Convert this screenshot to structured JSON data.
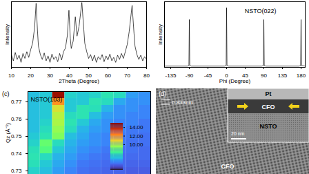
{
  "chart_data": [
    {
      "type": "line",
      "x_label": "2Theta (Degree)",
      "y_label": "Intensity",
      "color": "#000000",
      "x": [
        10,
        11,
        12,
        13,
        14,
        15,
        16,
        17,
        18,
        19,
        20,
        21,
        22,
        22.8,
        23.5,
        24,
        25,
        26,
        27,
        28,
        29,
        30,
        31,
        32,
        33,
        34,
        35,
        36,
        37,
        38,
        39,
        39.8,
        40.5,
        41,
        42,
        43.1,
        44,
        45,
        46.5,
        47.5,
        48,
        49,
        50,
        51,
        52,
        53,
        54,
        55,
        56,
        57,
        58,
        59,
        60,
        61,
        62,
        63,
        64,
        65,
        66,
        67,
        68,
        69,
        70,
        71,
        72.5,
        73.5,
        74,
        75,
        76,
        77,
        78,
        79,
        80
      ],
      "values": [
        60,
        25,
        80,
        30,
        55,
        20,
        70,
        35,
        90,
        40,
        120,
        300,
        2500,
        80000,
        1800,
        200,
        60,
        30,
        75,
        25,
        50,
        20,
        65,
        30,
        45,
        22,
        70,
        28,
        90,
        150,
        900,
        30000,
        600,
        140,
        400,
        12000,
        800,
        3000,
        90000,
        2000,
        300,
        90,
        35,
        60,
        25,
        55,
        20,
        45,
        30,
        60,
        22,
        50,
        28,
        65,
        25,
        40,
        20,
        55,
        30,
        70,
        35,
        90,
        250,
        1500,
        60000,
        1200,
        200,
        60,
        30,
        55,
        25,
        45,
        30
      ],
      "xlim": [
        10,
        80
      ],
      "xticks": [
        10,
        20,
        30,
        40,
        50,
        60,
        70,
        80
      ],
      "ylim": [
        10,
        100000
      ],
      "log": "y",
      "tick_labels": "x"
    },
    {
      "type": "line",
      "x_label": "Phi (Degree)",
      "y_label": "Intensity",
      "annotation": "NSTO(022)",
      "color": "#000000",
      "x": [
        -150,
        -95,
        -91,
        -90,
        -89,
        -85,
        -5,
        -1,
        0,
        1,
        5,
        85,
        89,
        90,
        91,
        95,
        175,
        179,
        180,
        181,
        190
      ],
      "values": [
        2,
        2,
        3,
        80,
        3,
        2,
        2,
        3,
        100,
        3,
        2,
        2,
        3,
        80,
        3,
        2,
        2,
        3,
        80,
        3,
        2
      ],
      "xlim": [
        -150,
        190
      ],
      "xticks": [
        -135,
        -90,
        -45,
        0,
        45,
        90,
        135,
        180
      ],
      "ylim": [
        0,
        110
      ],
      "tick_labels": "x"
    },
    {
      "type": "heatmap",
      "panel": "(c)",
      "annotation": "NSTO(103)",
      "y_label": "Qz (Å⁻¹)",
      "qx_edges": [
        0.22,
        0.227,
        0.234,
        0.241,
        0.248,
        0.255,
        0.262,
        0.269,
        0.276,
        0.283,
        0.29
      ],
      "qz_edges": [
        0.776,
        0.772,
        0.768,
        0.764,
        0.76,
        0.756,
        0.752,
        0.748,
        0.744,
        0.74,
        0.736,
        0.732,
        0.728
      ],
      "cells": [
        [
          6.8,
          7.0,
          14.5,
          7.2,
          7.0,
          7.2,
          7.6,
          7.4,
          6.2,
          6.0
        ],
        [
          6.8,
          7.0,
          12.0,
          7.0,
          7.0,
          7.6,
          7.4,
          6.4,
          6.0,
          6.0
        ],
        [
          6.8,
          7.0,
          10.5,
          7.0,
          7.6,
          7.5,
          6.6,
          6.0,
          6.0,
          5.8
        ],
        [
          6.8,
          7.0,
          10.0,
          7.4,
          7.6,
          6.8,
          6.2,
          6.0,
          5.8,
          5.8
        ],
        [
          6.8,
          7.2,
          9.8,
          7.6,
          7.0,
          6.4,
          6.0,
          5.8,
          5.8,
          5.6
        ],
        [
          6.8,
          7.4,
          9.5,
          7.4,
          6.6,
          6.2,
          6.0,
          5.8,
          5.6,
          5.6
        ],
        [
          7.0,
          7.6,
          9.2,
          6.8,
          6.4,
          6.0,
          5.8,
          5.6,
          5.6,
          5.5
        ],
        [
          7.2,
          8.8,
          7.4,
          6.6,
          6.2,
          6.0,
          5.8,
          5.6,
          5.5,
          5.5
        ],
        [
          7.5,
          8.5,
          7.0,
          6.4,
          6.0,
          5.8,
          5.6,
          5.5,
          5.5,
          5.4
        ],
        [
          7.6,
          7.4,
          6.6,
          6.2,
          5.8,
          5.6,
          5.5,
          5.4,
          5.4,
          5.4
        ],
        [
          7.5,
          7.0,
          6.4,
          6.0,
          5.6,
          5.5,
          5.4,
          5.4,
          5.3,
          5.3
        ],
        [
          7.2,
          6.8,
          6.2,
          5.8,
          5.5,
          5.4,
          5.3,
          5.3,
          5.2,
          5.2
        ]
      ],
      "xlim": [
        0.22,
        0.29
      ],
      "ylim": [
        0.728,
        0.776
      ],
      "yticks": [
        0.73,
        0.74,
        0.75,
        0.76,
        0.77
      ],
      "tick_labels": "y",
      "colorbar": {
        "range": [
          4,
          15
        ],
        "ticks": [
          {
            "value": 14,
            "label": "14.00"
          },
          {
            "value": 12,
            "label": "12.00"
          },
          {
            "value": 10,
            "label": "10.00"
          }
        ]
      }
    },
    {
      "type": "image",
      "annotations": {
        "panel": "(d)",
        "spacing": "0.833nm",
        "layer": "CFO",
        "inset_top": "Pt",
        "inset_film": "CFO",
        "inset_substrate": "NSTO",
        "scale_bar": "20 nm"
      }
    }
  ]
}
